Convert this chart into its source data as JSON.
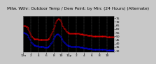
{
  "title": "Milw. Wthr: Outdoor Temp / Dew Point: by Min: (24 Hours) (Alternate)",
  "bg_color": "#c8c8c8",
  "plot_bg": "#000000",
  "temp_color": "#ff0000",
  "dew_color": "#0000ff",
  "grid_color": "#666666",
  "temp_data": [
    65,
    65,
    65,
    65,
    64,
    64,
    63,
    62,
    60,
    58,
    56,
    54,
    52,
    50,
    49,
    48,
    47,
    46,
    46,
    46,
    46,
    46,
    46,
    46,
    45,
    45,
    45,
    45,
    45,
    45,
    45,
    45,
    45,
    45,
    45,
    45,
    45,
    45,
    45,
    46,
    46,
    47,
    49,
    51,
    53,
    55,
    57,
    60,
    62,
    64,
    66,
    68,
    70,
    72,
    73,
    74,
    74,
    73,
    72,
    70,
    68,
    67,
    65,
    64,
    62,
    61,
    60,
    58,
    57,
    56,
    55,
    55,
    55,
    54,
    54,
    54,
    54,
    54,
    54,
    54,
    54,
    54,
    54,
    54,
    54,
    54,
    54,
    54,
    54,
    53,
    53,
    53,
    53,
    53,
    53,
    52,
    52,
    52,
    52,
    52,
    52,
    51,
    51,
    51,
    51,
    51,
    51,
    51,
    51,
    50,
    50,
    50,
    50,
    50,
    50,
    50,
    50,
    50,
    50,
    50,
    50,
    50,
    50,
    50,
    50,
    50,
    50,
    50,
    50,
    50,
    50,
    49,
    49,
    49,
    49,
    49,
    49,
    49,
    49,
    49,
    49,
    49,
    49,
    49
  ],
  "dew_data": [
    55,
    55,
    55,
    54,
    54,
    53,
    52,
    51,
    49,
    48,
    46,
    45,
    43,
    42,
    41,
    40,
    39,
    38,
    38,
    38,
    37,
    37,
    37,
    37,
    36,
    36,
    36,
    36,
    36,
    36,
    36,
    36,
    36,
    35,
    35,
    35,
    35,
    35,
    35,
    36,
    36,
    37,
    38,
    40,
    41,
    42,
    44,
    46,
    47,
    49,
    50,
    51,
    52,
    53,
    53,
    53,
    52,
    51,
    50,
    49,
    47,
    46,
    45,
    44,
    43,
    42,
    41,
    40,
    39,
    38,
    38,
    37,
    37,
    37,
    37,
    36,
    36,
    36,
    36,
    36,
    36,
    36,
    36,
    36,
    36,
    36,
    36,
    36,
    36,
    35,
    35,
    35,
    35,
    35,
    35,
    34,
    34,
    34,
    34,
    34,
    34,
    33,
    33,
    33,
    33,
    33,
    33,
    33,
    33,
    32,
    32,
    32,
    32,
    32,
    32,
    32,
    32,
    32,
    32,
    32,
    32,
    32,
    32,
    32,
    32,
    32,
    32,
    32,
    32,
    32,
    32,
    31,
    31,
    31,
    31,
    31,
    31,
    31,
    31,
    31,
    31,
    31,
    31,
    31
  ],
  "ylim": [
    28,
    78
  ],
  "ytick_positions": [
    30,
    35,
    40,
    45,
    50,
    55,
    60,
    65,
    70,
    75
  ],
  "ytick_labels": [
    "30",
    "35",
    "40",
    "45",
    "50",
    "55",
    "60",
    "65",
    "70",
    "75"
  ],
  "n_points": 144,
  "xtick_positions": [
    0,
    12,
    24,
    36,
    48,
    60,
    72,
    84,
    96,
    108,
    120,
    132
  ],
  "xtick_labels": [
    "12a",
    "2",
    "4",
    "6",
    "8",
    "10",
    "12p",
    "2",
    "4",
    "6",
    "8",
    "10"
  ],
  "vgrid_positions": [
    0,
    12,
    24,
    36,
    48,
    60,
    72,
    84,
    96,
    108,
    120,
    132
  ],
  "title_fontsize": 4.2,
  "tick_fontsize": 3.2,
  "markersize": 0.6,
  "linewidth": 0.5
}
